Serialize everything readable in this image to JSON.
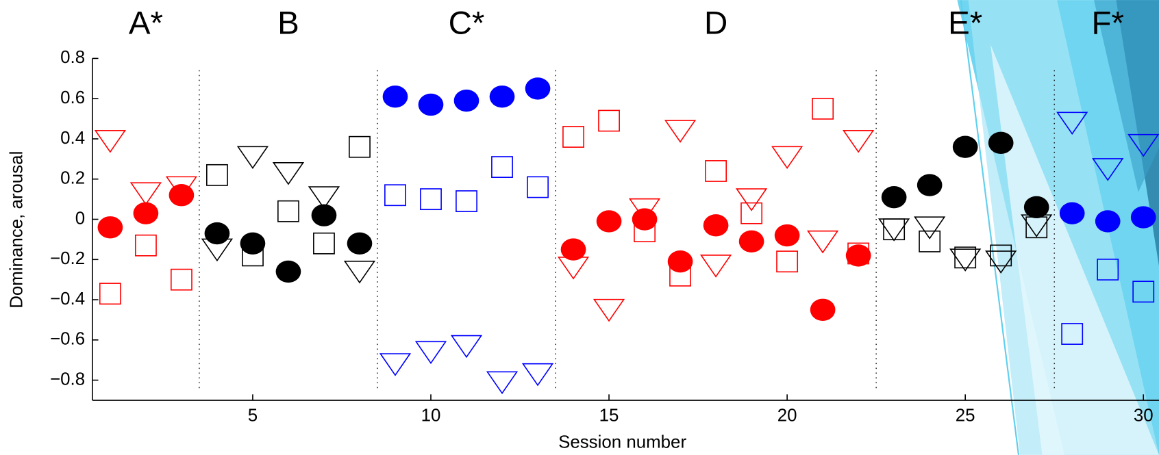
{
  "chart_data": {
    "type": "scatter",
    "xlabel": "Session number",
    "ylabel": "Dominance, arousal",
    "xlim": [
      0.5,
      30.5
    ],
    "ylim": [
      -0.9,
      0.8
    ],
    "xticks": [
      5,
      10,
      15,
      20,
      25,
      30
    ],
    "yticks": [
      {
        "value": -0.8,
        "label": "−0.8"
      },
      {
        "value": -0.6,
        "label": "−0.6"
      },
      {
        "value": -0.4,
        "label": "−0.4"
      },
      {
        "value": -0.2,
        "label": "−0.2"
      },
      0,
      0.2,
      0.4,
      0.6,
      0.8
    ],
    "groups": [
      {
        "label": "A*",
        "color": "#ff0000",
        "sessions": [
          1,
          3
        ]
      },
      {
        "label": "B",
        "color": "#000000",
        "sessions": [
          4,
          8
        ]
      },
      {
        "label": "C*",
        "color": "#0000ff",
        "sessions": [
          9,
          13
        ]
      },
      {
        "label": "D",
        "color": "#ff0000",
        "sessions": [
          14,
          22
        ]
      },
      {
        "label": "E*",
        "color": "#000000",
        "sessions": [
          23,
          27
        ]
      },
      {
        "label": "F*",
        "color": "#0000ff",
        "sessions": [
          28,
          30
        ]
      }
    ],
    "x": [
      1,
      2,
      3,
      4,
      5,
      6,
      7,
      8,
      9,
      10,
      11,
      12,
      13,
      14,
      15,
      16,
      17,
      18,
      19,
      20,
      21,
      22,
      23,
      24,
      25,
      26,
      27,
      28,
      29,
      30
    ],
    "series": [
      {
        "marker": "square",
        "values": [
          -0.37,
          -0.13,
          -0.3,
          0.22,
          -0.18,
          0.04,
          -0.12,
          0.36,
          0.12,
          0.1,
          0.09,
          0.26,
          0.16,
          0.41,
          0.49,
          -0.06,
          -0.28,
          0.24,
          0.03,
          -0.21,
          0.55,
          -0.17,
          -0.05,
          -0.11,
          -0.19,
          -0.18,
          -0.04,
          -0.57,
          -0.25,
          -0.36
        ]
      },
      {
        "marker": "triangle",
        "values": [
          0.39,
          0.13,
          0.16,
          -0.15,
          0.31,
          0.23,
          0.11,
          -0.26,
          -0.72,
          -0.66,
          -0.63,
          -0.81,
          -0.77,
          -0.24,
          -0.45,
          0.05,
          0.44,
          -0.23,
          0.1,
          0.31,
          -0.11,
          0.39,
          -0.05,
          -0.04,
          -0.2,
          -0.21,
          -0.03,
          0.48,
          0.25,
          0.37
        ]
      },
      {
        "marker": "circle",
        "values": [
          -0.04,
          0.03,
          0.12,
          -0.07,
          -0.12,
          -0.26,
          0.02,
          -0.12,
          0.61,
          0.57,
          0.59,
          0.61,
          0.65,
          -0.15,
          -0.01,
          0.0,
          -0.21,
          -0.03,
          -0.11,
          -0.08,
          -0.45,
          -0.18,
          0.11,
          0.17,
          0.36,
          0.38,
          0.06,
          0.03,
          -0.01,
          0.01
        ]
      }
    ]
  }
}
